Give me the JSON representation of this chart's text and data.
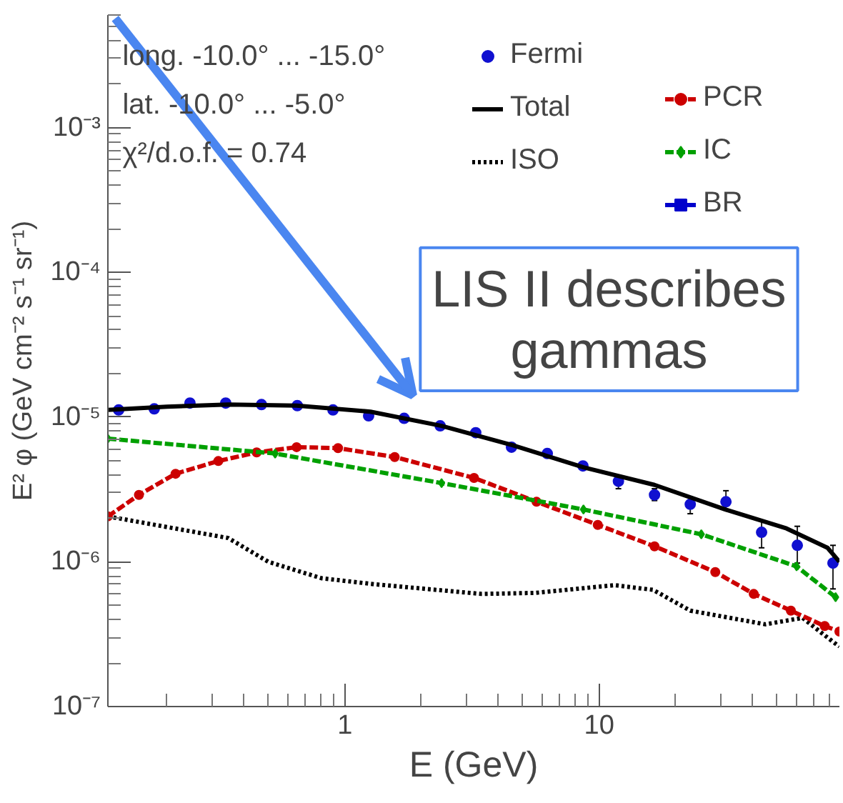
{
  "chart_data": {
    "type": "line",
    "xlabel": "E (GeV)",
    "ylabel": "E² φ (GeV cm⁻² s⁻¹ sr⁻¹)",
    "log": "xy",
    "grid": false,
    "legend": "top right",
    "xlim": [
      0.117,
      88
    ],
    "ylim": [
      1e-07,
      0.006
    ],
    "xticks": [
      1,
      10
    ],
    "yticks": [
      {
        "value": 1e-07,
        "label": "10⁻⁷"
      },
      {
        "value": 1e-06,
        "label": "10⁻⁶"
      },
      {
        "value": 1e-05,
        "label": "10⁻⁵"
      },
      {
        "value": 0.0001,
        "label": "10⁻⁴"
      },
      {
        "value": 0.001,
        "label": "10⁻³"
      }
    ],
    "annotations": [
      "long. -10.0° ... -15.0°",
      "lat. -10.0° ... -5.0°",
      "χ²/d.o.f. = 0.74",
      "LIS II describes gammas"
    ],
    "series": [
      {
        "name": "Fermi",
        "type": "scatter",
        "marker": "circle",
        "color": "#1010d0",
        "x": [
          0.129,
          0.178,
          0.246,
          0.34,
          0.47,
          0.65,
          0.898,
          1.24,
          1.71,
          2.37,
          3.27,
          4.52,
          6.25,
          8.63,
          11.9,
          16.5,
          22.8,
          31.5,
          43.5,
          60.1,
          83
        ],
        "values": [
          1.12e-05,
          1.14e-05,
          1.25e-05,
          1.25e-05,
          1.22e-05,
          1.2e-05,
          1.12e-05,
          1.02e-05,
          9.8e-06,
          8.7e-06,
          7.8e-06,
          6.2e-06,
          5.6e-06,
          4.6e-06,
          3.6e-06,
          2.9e-06,
          2.5e-06,
          2.6e-06,
          1.6e-06,
          1.3e-06,
          9.8e-07
        ],
        "errors": [
          null,
          null,
          null,
          null,
          null,
          null,
          null,
          null,
          null,
          null,
          null,
          null,
          null,
          null,
          [
            3.2e-06,
            3.96e-06
          ],
          [
            2.65e-06,
            3.2e-06
          ],
          [
            2.15e-06,
            2.8e-06
          ],
          [
            2.3e-06,
            3.1e-06
          ],
          [
            1.25e-06,
            1.93e-06
          ],
          [
            9.8e-07,
            1.76e-06
          ],
          [
            6.5e-07,
            1.3e-06
          ]
        ]
      },
      {
        "name": "Total",
        "line_style": "solid",
        "color": "#000000",
        "x": [
          0.117,
          0.2,
          0.348,
          0.646,
          1.26,
          2.4,
          4.56,
          8.67,
          16.5,
          31.3,
          54.5,
          79,
          88
        ],
        "values": [
          1.12e-05,
          1.18e-05,
          1.22e-05,
          1.2e-05,
          1.09e-05,
          8.7e-06,
          6.4e-06,
          4.5e-06,
          3.4e-06,
          2.3e-06,
          1.7e-06,
          1.25e-06,
          1e-06
        ]
      },
      {
        "name": "ISO",
        "line_style": "dotted",
        "color": "#000000",
        "x": [
          0.117,
          0.348,
          0.5,
          0.81,
          1.31,
          3.44,
          5.6,
          11.5,
          16.3,
          22.8,
          45,
          63,
          83,
          88
        ],
        "values": [
          2.06e-06,
          1.46e-06,
          1e-06,
          7.7e-07,
          7e-07,
          6e-07,
          6.1e-07,
          6.9e-07,
          6.4e-07,
          4.6e-07,
          3.7e-07,
          4.1e-07,
          2.8e-07,
          2.6e-07
        ]
      },
      {
        "name": "PCR",
        "marker": "circle",
        "line_style": "dashed",
        "color": "#cc0000",
        "x": [
          0.117,
          0.155,
          0.216,
          0.318,
          0.45,
          0.646,
          0.94,
          1.57,
          3.22,
          5.67,
          9.87,
          16.5,
          28.6,
          40.5,
          56.7,
          77,
          88
        ],
        "values": [
          2.06e-06,
          2.9e-06,
          4.06e-06,
          4.97e-06,
          5.7e-06,
          6.2e-06,
          6.1e-06,
          5.3e-06,
          3.8e-06,
          2.6e-06,
          1.8e-06,
          1.28e-06,
          8.5e-07,
          6e-07,
          4.6e-07,
          3.6e-07,
          3.3e-07
        ]
      },
      {
        "name": "IC",
        "marker": "diamond",
        "line_style": "dashed",
        "color": "#00a000",
        "x": [
          0.117,
          0.532,
          2.4,
          8.67,
          25.2,
          59.7,
          85
        ],
        "values": [
          7.1e-06,
          5.6e-06,
          3.5e-06,
          2.3e-06,
          1.55e-06,
          9.3e-07,
          5.7e-07
        ]
      },
      {
        "name": "BR",
        "marker": "square",
        "line_style": "solid",
        "color": "#0000cc"
      }
    ]
  }
}
